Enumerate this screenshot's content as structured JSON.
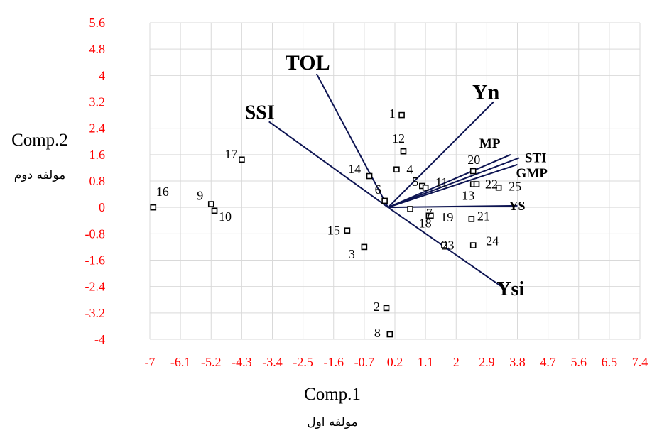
{
  "chart_data": {
    "type": "scatter",
    "subtype": "biplot",
    "xlabel": "Comp.1",
    "xlabel_sub": "مولفه اول",
    "ylabel": "Comp.2",
    "ylabel_sub": "مولفه دوم",
    "xlim": [
      -7,
      7.4
    ],
    "ylim": [
      -4,
      5.6
    ],
    "x_ticks": [
      "-7",
      "-6.1",
      "-5.2",
      "-4.3",
      "-3.4",
      "-2.5",
      "-1.6",
      "-0.7",
      "0.2",
      "1.1",
      "2",
      "2.9",
      "3.8",
      "4.7",
      "5.6",
      "6.5",
      "7.4"
    ],
    "y_ticks": [
      "5.6",
      "4.8",
      "4",
      "3.2",
      "2.4",
      "1.6",
      "0.8",
      "0",
      "-0.8",
      "-1.6",
      "-2.4",
      "-3.2",
      "-4"
    ],
    "grid": true,
    "tick_color": "#ff0000",
    "vector_color": "#0d1452",
    "points": [
      {
        "label": "1",
        "x": 0.4,
        "y": 2.8
      },
      {
        "label": "2",
        "x": -0.05,
        "y": -3.05
      },
      {
        "label": "3",
        "x": -0.7,
        "y": -1.2
      },
      {
        "label": "4",
        "x": 0.25,
        "y": 1.15
      },
      {
        "label": "5",
        "x": 1.0,
        "y": 0.65
      },
      {
        "label": "6",
        "x": -0.1,
        "y": 0.2
      },
      {
        "label": "7",
        "x": 1.2,
        "y": -0.25
      },
      {
        "label": "8",
        "x": 0.05,
        "y": -3.85
      },
      {
        "label": "9",
        "x": -5.2,
        "y": 0.1
      },
      {
        "label": "10",
        "x": -5.1,
        "y": -0.1
      },
      {
        "label": "11",
        "x": 1.1,
        "y": 0.6
      },
      {
        "label": "12",
        "x": 0.45,
        "y": 1.7
      },
      {
        "label": "13",
        "x": 2.5,
        "y": 0.7
      },
      {
        "label": "14",
        "x": -0.55,
        "y": 0.95
      },
      {
        "label": "15",
        "x": -1.2,
        "y": -0.7
      },
      {
        "label": "16",
        "x": -6.9,
        "y": 0.0
      },
      {
        "label": "17",
        "x": -4.3,
        "y": 1.45
      },
      {
        "label": "18",
        "x": 0.65,
        "y": -0.05
      },
      {
        "label": "19",
        "x": 1.25,
        "y": -0.25
      },
      {
        "label": "20",
        "x": 2.5,
        "y": 1.1
      },
      {
        "label": "21",
        "x": 2.45,
        "y": -0.35
      },
      {
        "label": "22",
        "x": 2.6,
        "y": 0.7
      },
      {
        "label": "23",
        "x": 1.65,
        "y": -1.15
      },
      {
        "label": "24",
        "x": 2.5,
        "y": -1.15
      },
      {
        "label": "25",
        "x": 3.25,
        "y": 0.6
      }
    ],
    "vectors": [
      {
        "name": "TOL",
        "x": -2.1,
        "y": 4.05
      },
      {
        "name": "SSI",
        "x": -3.5,
        "y": 2.6
      },
      {
        "name": "Yn",
        "x": 3.1,
        "y": 3.2
      },
      {
        "name": "MP",
        "x": 3.6,
        "y": 1.6
      },
      {
        "name": "STI",
        "x": 3.85,
        "y": 1.5
      },
      {
        "name": "GMP",
        "x": 3.8,
        "y": 1.3
      },
      {
        "name": "YS",
        "x": 3.8,
        "y": 0.05
      },
      {
        "name": "Ysi",
        "x": 3.4,
        "y": -2.45
      }
    ]
  }
}
